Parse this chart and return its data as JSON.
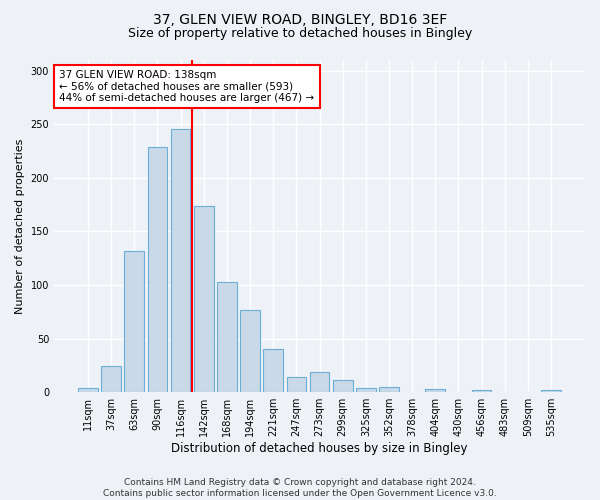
{
  "title_line1": "37, GLEN VIEW ROAD, BINGLEY, BD16 3EF",
  "title_line2": "Size of property relative to detached houses in Bingley",
  "xlabel": "Distribution of detached houses by size in Bingley",
  "ylabel": "Number of detached properties",
  "bar_labels": [
    "11sqm",
    "37sqm",
    "63sqm",
    "90sqm",
    "116sqm",
    "142sqm",
    "168sqm",
    "194sqm",
    "221sqm",
    "247sqm",
    "273sqm",
    "299sqm",
    "325sqm",
    "352sqm",
    "378sqm",
    "404sqm",
    "430sqm",
    "456sqm",
    "483sqm",
    "509sqm",
    "535sqm"
  ],
  "bar_values": [
    4,
    24,
    132,
    229,
    246,
    174,
    103,
    77,
    40,
    14,
    19,
    11,
    4,
    5,
    0,
    3,
    0,
    2,
    0,
    0,
    2
  ],
  "bar_color": "#c9d9e8",
  "bar_edge_color": "#6baed6",
  "vline_index": 5,
  "vline_color": "red",
  "vline_linewidth": 1.5,
  "annotation_text": "37 GLEN VIEW ROAD: 138sqm\n← 56% of detached houses are smaller (593)\n44% of semi-detached houses are larger (467) →",
  "annotation_box_color": "white",
  "annotation_box_edge_color": "red",
  "annotation_fontsize": 7.5,
  "ylim": [
    0,
    310
  ],
  "yticks": [
    0,
    50,
    100,
    150,
    200,
    250,
    300
  ],
  "footer_text": "Contains HM Land Registry data © Crown copyright and database right 2024.\nContains public sector information licensed under the Open Government Licence v3.0.",
  "background_color": "#eef2f7",
  "grid_color": "white",
  "title_fontsize": 10,
  "subtitle_fontsize": 9,
  "xlabel_fontsize": 8.5,
  "ylabel_fontsize": 8,
  "tick_fontsize": 7,
  "footer_fontsize": 6.5
}
